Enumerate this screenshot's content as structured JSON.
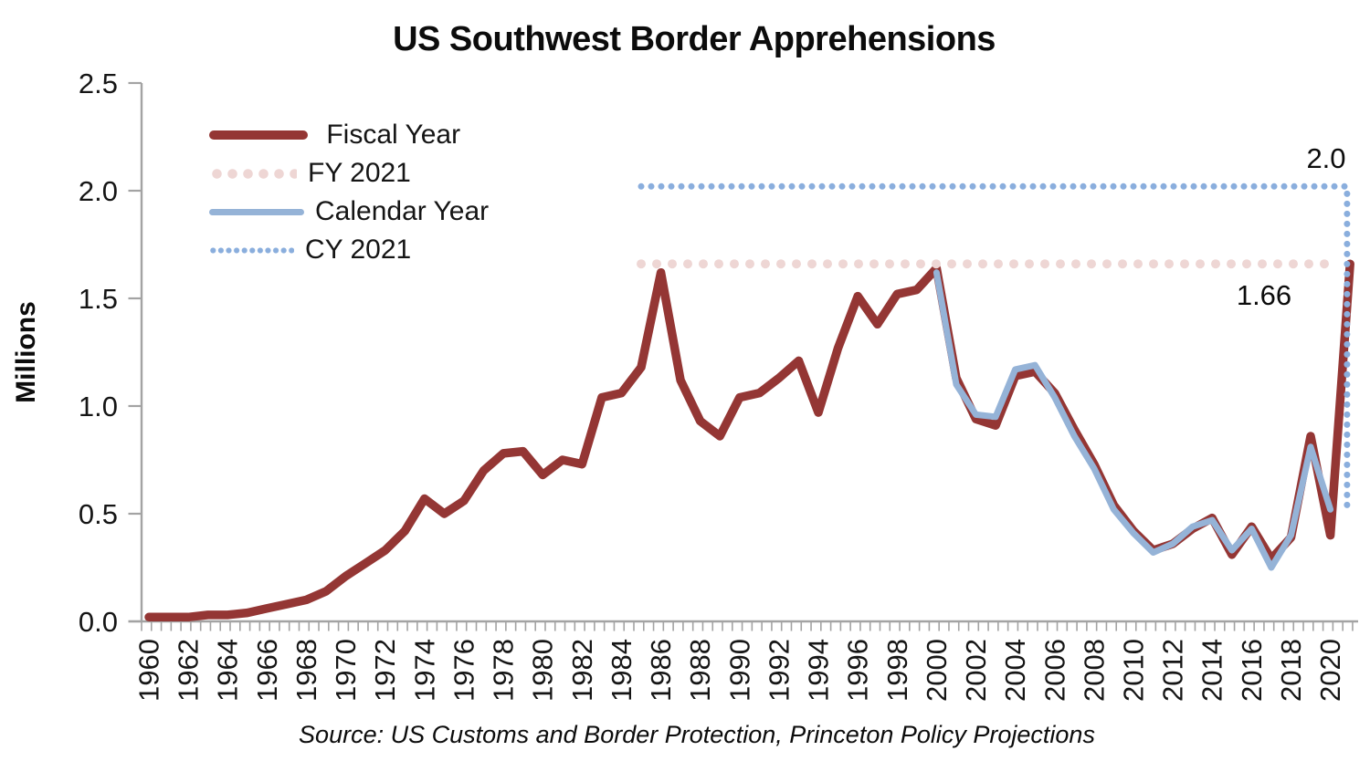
{
  "title": "US Southwest Border Apprehensions",
  "source": "Source: US Customs and Border Protection, Princeton Policy Projections",
  "annotations": {
    "cy_2021": "2.0",
    "fy_2021": "1.66"
  },
  "legend": {
    "items": [
      {
        "key": "fiscal-year",
        "label": " Fiscal Year"
      },
      {
        "key": "fy-2021",
        "label": "FY 2021"
      },
      {
        "key": "calendar-year",
        "label": "Calendar Year"
      },
      {
        "key": "cy-2021",
        "label": "CY 2021"
      }
    ]
  },
  "colors": {
    "fiscal_line": "#943634",
    "calendar_line": "#95B3D7",
    "fy2021_dotted": "#EED6D4",
    "cy2021_dotted": "#8AAEDD",
    "axis": "#A3A3A3",
    "text": "#151515"
  },
  "chart_data": {
    "type": "line",
    "title": "US Southwest Border Apprehensions",
    "xlabel": "",
    "ylabel": "Millions",
    "ylim": [
      0,
      2.5
    ],
    "y_tick_labels": [
      "0.0",
      "0.5",
      "1.0",
      "1.5",
      "2.0",
      "2.5"
    ],
    "x_tick_labels": [
      "1960",
      "1962",
      "1964",
      "1966",
      "1968",
      "1970",
      "1972",
      "1974",
      "1976",
      "1978",
      "1980",
      "1982",
      "1984",
      "1986",
      "1988",
      "1990",
      "1992",
      "1994",
      "1996",
      "1998",
      "2000",
      "2002",
      "2004",
      "2006",
      "2008",
      "2010",
      "2012",
      "2014",
      "2016",
      "2018",
      "2020"
    ],
    "grid": false,
    "legend_position": "upper-left",
    "series": [
      {
        "name": "Fiscal Year",
        "style": "solid",
        "start_year": 1960,
        "values": [
          0.02,
          0.02,
          0.02,
          0.03,
          0.03,
          0.04,
          0.06,
          0.08,
          0.1,
          0.14,
          0.21,
          0.27,
          0.33,
          0.42,
          0.57,
          0.5,
          0.56,
          0.7,
          0.78,
          0.79,
          0.68,
          0.75,
          0.73,
          1.04,
          1.06,
          1.18,
          1.62,
          1.12,
          0.93,
          0.86,
          1.04,
          1.06,
          1.13,
          1.21,
          0.97,
          1.27,
          1.51,
          1.38,
          1.52,
          1.54,
          1.64,
          1.13,
          0.94,
          0.91,
          1.14,
          1.16,
          1.06,
          0.89,
          0.73,
          0.54,
          0.42,
          0.33,
          0.36,
          0.43,
          0.48,
          0.31,
          0.44,
          0.29,
          0.39,
          0.86,
          0.4,
          1.66
        ]
      },
      {
        "name": "Calendar Year",
        "style": "solid",
        "start_year": 2000,
        "values": [
          1.62,
          1.1,
          0.96,
          0.95,
          1.17,
          1.19,
          1.04,
          0.86,
          0.71,
          0.52,
          0.41,
          0.32,
          0.36,
          0.44,
          0.47,
          0.33,
          0.43,
          0.25,
          0.4,
          0.81,
          0.52
        ]
      },
      {
        "name": "FY 2021",
        "style": "dotted-reference-line",
        "value": 1.66,
        "span_years": [
          1985,
          2020.4
        ]
      },
      {
        "name": "CY 2021",
        "style": "dotted-reference-line-with-drop",
        "value": 2.0,
        "plotted_level": 2.02,
        "span_years": [
          1985,
          2020.8
        ],
        "drop_at_year": 2020.85,
        "drop_to_value": 0.53
      }
    ]
  }
}
